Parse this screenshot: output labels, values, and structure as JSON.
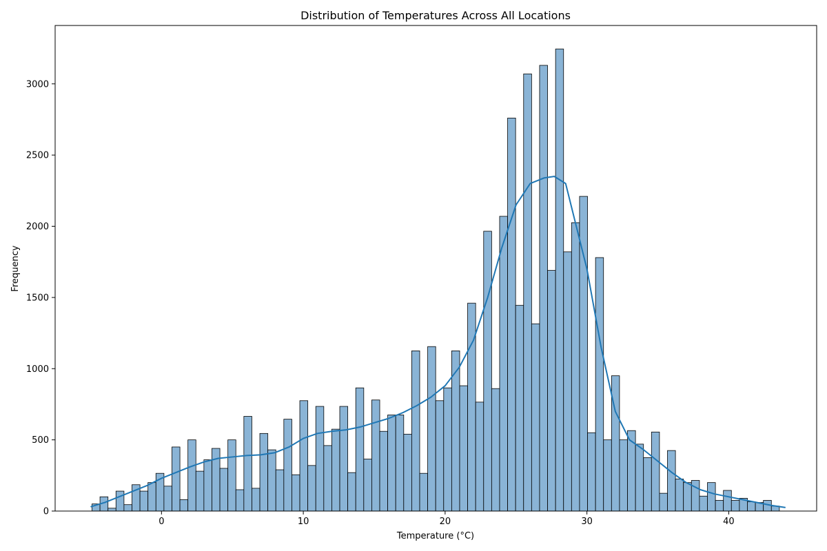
{
  "chart_data": {
    "type": "bar",
    "title": "Distribution of Temperatures Across All Locations",
    "xlabel": "Temperature (°C)",
    "ylabel": "Frequency",
    "xlim": [
      -7.5,
      46.2
    ],
    "ylim": [
      0,
      3410
    ],
    "xticks": [
      0,
      10,
      20,
      30,
      40
    ],
    "yticks": [
      0,
      500,
      1000,
      1500,
      2000,
      2500,
      3000
    ],
    "bins": {
      "start": -4.9,
      "width": 0.5636,
      "values": [
        50,
        100,
        20,
        140,
        45,
        185,
        140,
        200,
        265,
        175,
        450,
        80,
        500,
        280,
        360,
        440,
        300,
        500,
        150,
        665,
        160,
        545,
        430,
        290,
        645,
        255,
        775,
        320,
        735,
        460,
        575,
        735,
        270,
        865,
        365,
        780,
        560,
        675,
        675,
        540,
        1125,
        265,
        1155,
        775,
        865,
        1125,
        880,
        1460,
        765,
        1965,
        860,
        2070,
        2760,
        1445,
        3070,
        1315,
        3130,
        1690,
        3245,
        1820,
        2025,
        2210,
        550,
        1780,
        500,
        950,
        500,
        565,
        470,
        375,
        555,
        125,
        425,
        225,
        200,
        215,
        105,
        200,
        75,
        145,
        75,
        90,
        65,
        60,
        75,
        35
      ]
    },
    "kde": {
      "name": "",
      "x": [
        -5,
        -4,
        -3,
        -2,
        -1,
        0,
        1,
        2,
        3,
        4,
        5,
        6,
        7,
        8,
        9,
        10,
        11,
        12,
        13,
        14,
        15,
        16,
        17,
        18,
        19,
        20,
        21,
        22,
        23,
        24,
        25,
        26,
        27,
        27.7,
        28.5,
        29,
        30,
        31,
        32,
        33,
        34,
        35,
        36,
        37,
        38,
        39,
        40,
        41,
        42,
        43,
        44
      ],
      "y": [
        30,
        60,
        100,
        140,
        180,
        230,
        270,
        310,
        345,
        370,
        380,
        390,
        395,
        410,
        450,
        510,
        545,
        560,
        570,
        590,
        620,
        650,
        690,
        740,
        800,
        880,
        1010,
        1200,
        1500,
        1850,
        2150,
        2300,
        2340,
        2350,
        2300,
        2100,
        1700,
        1150,
        700,
        500,
        430,
        350,
        270,
        200,
        150,
        120,
        100,
        80,
        60,
        40,
        25
      ]
    },
    "colors": {
      "bar_fill": "#8ab4d6",
      "bar_edge": "#000000",
      "kde_line": "#1f77b4"
    },
    "grid": false,
    "legend": "none"
  }
}
